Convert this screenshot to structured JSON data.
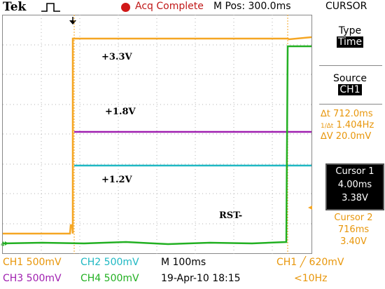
{
  "header": {
    "brand": "Tek",
    "trigger_icon": "trigger-pulse-icon",
    "acq_status": "Acq Complete",
    "mpos": "M Pos: 300.0ms",
    "menu_title": "CURSOR"
  },
  "sidebar": {
    "type_label": "Type",
    "type_value": "Time",
    "source_label": "Source",
    "source_value": "CH1",
    "delta_t": "712.0ms",
    "inv_delta_t": "1.404Hz",
    "delta_v": "20.0mV",
    "cursor1": {
      "title": "Cursor 1",
      "time": "4.00ms",
      "volt": "3.38V"
    },
    "cursor2": {
      "title": "Cursor 2",
      "time": "716ms",
      "volt": "3.40V"
    }
  },
  "traces": {
    "labels": {
      "v33": "+3.3V",
      "v18": "+1.8V",
      "v12": "+1.2V",
      "rst": "RST-"
    },
    "colors": {
      "ch1": "#f5a623",
      "ch2": "#1fb8c3",
      "ch3": "#a020b0",
      "ch4": "#22b022"
    }
  },
  "readouts": {
    "ch1": "CH1  500mV",
    "ch2": "CH2  500mV",
    "ch3": "CH3  500mV",
    "ch4": "CH4  500mV",
    "timebase": "M 100ms",
    "date": "19-Apr-10 18:15",
    "trigger": "CH1  ╱  620mV",
    "freq": "<10Hz"
  }
}
